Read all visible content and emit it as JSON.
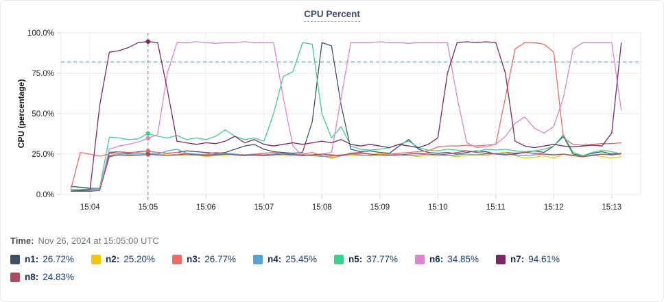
{
  "card": {
    "title": "CPU Percent"
  },
  "time_row": {
    "label": "Time:",
    "value": "Nov 26, 2024 at 15:05:00 UTC"
  },
  "chart_data": {
    "type": "line",
    "title": "CPU Percent",
    "xlabel": "",
    "ylabel": "CPU (percentage)",
    "ylim": [
      0,
      100
    ],
    "grid": true,
    "legend_position": "bottom",
    "x_axis_start_time": "15:03:30",
    "x_axis_end_time": "15:13:30",
    "y_ticks": [
      {
        "v": 100,
        "label": "100.0%"
      },
      {
        "v": 75,
        "label": "75.0%"
      },
      {
        "v": 50,
        "label": "50.0%"
      },
      {
        "v": 25,
        "label": "25.0%"
      },
      {
        "v": 0,
        "label": "0.0%"
      }
    ],
    "x_ticks": [
      {
        "t": 30,
        "label": "15:04"
      },
      {
        "t": 90,
        "label": "15:05"
      },
      {
        "t": 150,
        "label": "15:06"
      },
      {
        "t": 210,
        "label": "15:07"
      },
      {
        "t": 270,
        "label": "15:08"
      },
      {
        "t": 330,
        "label": "15:09"
      },
      {
        "t": 390,
        "label": "15:10"
      },
      {
        "t": 450,
        "label": "15:11"
      },
      {
        "t": 510,
        "label": "15:12"
      },
      {
        "t": 570,
        "label": "15:13"
      }
    ],
    "threshold_percent": 82,
    "cursor": {
      "t": 90,
      "time_label": "15:05"
    },
    "crosshair_color": "#4f7d8e",
    "x_seconds": [
      10,
      20,
      30,
      40,
      50,
      60,
      70,
      80,
      90,
      100,
      110,
      120,
      130,
      140,
      150,
      160,
      170,
      180,
      190,
      200,
      210,
      220,
      230,
      240,
      250,
      260,
      270,
      280,
      290,
      300,
      310,
      320,
      330,
      340,
      350,
      360,
      370,
      380,
      390,
      400,
      410,
      420,
      430,
      440,
      450,
      460,
      470,
      480,
      490,
      500,
      510,
      520,
      530,
      540,
      550,
      560,
      570,
      580
    ],
    "series": [
      {
        "name": "n1",
        "color": "#3f5168",
        "cursor_value": "26.72%",
        "values": [
          5,
          4.5,
          4,
          3.8,
          26,
          26.5,
          25.5,
          26.5,
          26.72,
          26,
          25.5,
          26,
          27,
          26.5,
          26,
          25.5,
          26,
          28,
          30,
          31,
          28,
          26.5,
          26,
          25.5,
          26,
          45,
          94,
          92,
          55,
          28,
          26.5,
          27,
          26,
          25.5,
          30,
          34,
          28,
          26,
          25.5,
          26,
          25,
          26,
          27,
          26.5,
          25,
          26,
          25.5,
          26,
          27,
          26,
          30,
          36,
          25,
          24,
          25.5,
          26.5,
          25,
          25.5
        ]
      },
      {
        "name": "n2",
        "color": "#f3c50c",
        "cursor_value": "25.20%",
        "values": [
          2,
          2,
          2.5,
          3,
          23,
          25,
          24.5,
          25,
          25.2,
          24.5,
          25,
          24.5,
          24,
          24.5,
          23.5,
          24,
          24.5,
          25,
          24.5,
          24,
          24.5,
          25,
          24,
          24.5,
          25,
          24.5,
          24,
          23.5,
          24,
          24.5,
          24,
          24.5,
          25.5,
          25,
          24.5,
          24,
          23.5,
          24,
          24.5,
          24,
          23.5,
          24,
          24.5,
          24,
          25.5,
          26,
          24,
          22.5,
          23,
          24,
          22.5,
          25,
          24.5,
          23,
          24.5,
          23.5,
          22.5,
          23.5
        ]
      },
      {
        "name": "n3",
        "color": "#ee6a64",
        "cursor_value": "26.77%",
        "values": [
          3,
          26,
          25,
          23.7,
          25,
          26.5,
          26,
          26.2,
          26.77,
          26,
          25.5,
          26,
          25,
          24.5,
          25,
          26,
          25.5,
          25,
          24.5,
          25,
          25.5,
          26,
          25,
          24.5,
          25,
          26,
          24,
          22.5,
          24,
          25,
          25.5,
          25,
          24.5,
          25,
          25.5,
          26,
          26.5,
          27,
          29.5,
          30,
          30,
          30.5,
          30,
          30.5,
          31,
          60,
          90,
          94,
          94,
          93,
          88,
          35,
          31,
          30.5,
          31,
          31.5,
          31.5,
          32
        ]
      },
      {
        "name": "n4",
        "color": "#5aa2d0",
        "cursor_value": "25.45%",
        "values": [
          2.5,
          2.5,
          3,
          3.5,
          24,
          25.5,
          25,
          25.2,
          25.45,
          25,
          27,
          28,
          25.5,
          25,
          24.5,
          25,
          25.5,
          25,
          24.5,
          25,
          24.5,
          25,
          25.5,
          25,
          24.5,
          24,
          23.5,
          24,
          24.5,
          25,
          24.5,
          24,
          24.5,
          25,
          24.5,
          24,
          24.5,
          25,
          24.5,
          24,
          24.5,
          25,
          24.5,
          25,
          25.5,
          25,
          24.5,
          24,
          24.5,
          25,
          24.5,
          25,
          24,
          23.5,
          24.5,
          25,
          24.5,
          25
        ]
      },
      {
        "name": "n5",
        "color": "#3fd08c",
        "cursor_value": "37.77%",
        "values": [
          3,
          3,
          3.5,
          4,
          35.5,
          35,
          34,
          34.5,
          37.77,
          36,
          35,
          36.5,
          34,
          35,
          34,
          36,
          40,
          36,
          34,
          35,
          33,
          50,
          73,
          76,
          94,
          93,
          50,
          35,
          42,
          30,
          28,
          27.5,
          28,
          29,
          31,
          33,
          29,
          27.5,
          27,
          28,
          27.5,
          27,
          26.5,
          28,
          27.5,
          28,
          27,
          26.5,
          27,
          28,
          30,
          37,
          26,
          24,
          26,
          27.5,
          26.5,
          25
        ]
      },
      {
        "name": "n6",
        "color": "#da85cd",
        "cursor_value": "34.85%",
        "values": [
          2,
          2,
          2.5,
          3,
          28,
          30,
          31,
          32.5,
          34.85,
          37,
          75,
          94,
          94,
          94.5,
          94,
          93.5,
          94,
          94,
          94.5,
          94,
          94,
          94,
          60,
          30,
          24,
          24.5,
          25,
          26,
          60,
          94,
          94,
          94,
          94.5,
          94,
          94,
          93.5,
          94,
          94,
          94,
          94,
          60,
          32,
          29,
          29.5,
          31,
          36,
          44,
          48,
          41,
          38,
          42,
          60,
          90,
          94,
          94,
          94,
          94,
          52
        ]
      },
      {
        "name": "n7",
        "color": "#7c2862",
        "cursor_value": "94.61%",
        "values": [
          2,
          2.5,
          3,
          55,
          88,
          89,
          91,
          94,
          94.61,
          94,
          65,
          33,
          32,
          31,
          32,
          31.5,
          33,
          36,
          32,
          34,
          31,
          30,
          31,
          32,
          31,
          32,
          33,
          32,
          34,
          31,
          30,
          31,
          30,
          29,
          31,
          30,
          29,
          31,
          35,
          75,
          94,
          94.5,
          94,
          94.5,
          94,
          75,
          33,
          30,
          29,
          30,
          31,
          30,
          29.5,
          30,
          30.5,
          30,
          38,
          94
        ]
      },
      {
        "name": "n8",
        "color": "#ad4a64",
        "cursor_value": "24.83%",
        "values": [
          2,
          2,
          2,
          2.5,
          23.5,
          24.5,
          24,
          24.3,
          24.83,
          24.5,
          24,
          24.5,
          25,
          24.5,
          24,
          24.5,
          25,
          24.5,
          24,
          24.5,
          24,
          24.5,
          25,
          24.5,
          24,
          24.5,
          25,
          24.5,
          24,
          25.5,
          26,
          25,
          24.5,
          24,
          24.5,
          25,
          25.5,
          25,
          24.5,
          25,
          26,
          27,
          26,
          25.5,
          25,
          24.5,
          25,
          26,
          25.5,
          25,
          24.5,
          25,
          24,
          23.5,
          24,
          25,
          24.5,
          25.5
        ]
      }
    ]
  }
}
